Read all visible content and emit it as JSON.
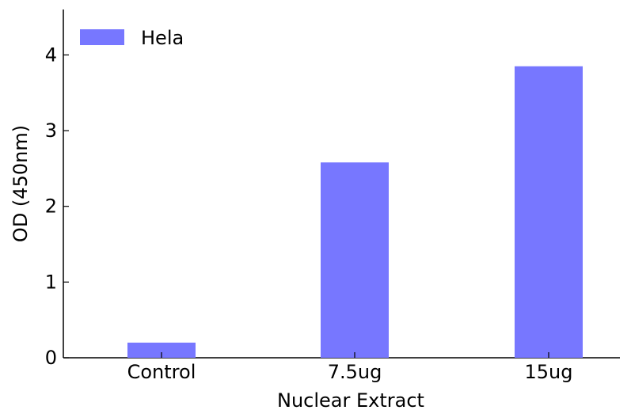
{
  "chart_data": {
    "type": "bar",
    "categories": [
      "Control",
      "7.5ug",
      "15ug"
    ],
    "series": [
      {
        "name": "Hela",
        "values": [
          0.2,
          2.58,
          3.85
        ],
        "color": "#7777ff"
      }
    ],
    "xlabel": "Nuclear Extract",
    "ylabel": "OD (450nm)",
    "ylim": [
      0,
      4.6
    ],
    "yticks": [
      0,
      1,
      2,
      3,
      4
    ],
    "grid": false,
    "legend": "top-left"
  }
}
